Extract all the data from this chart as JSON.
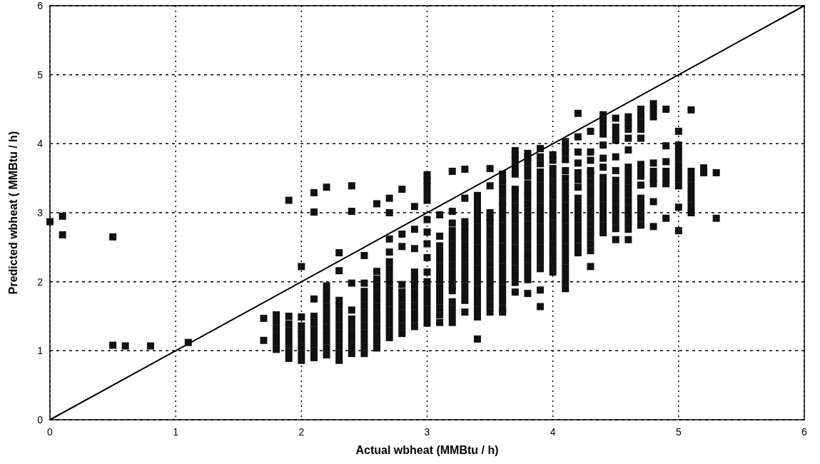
{
  "chart_data": {
    "type": "scatter",
    "xlabel": "Actual wbheat (MMBtu / h)",
    "ylabel": "Predicted wbheat ( MMBtu / h)",
    "xlim": [
      0,
      6
    ],
    "ylim": [
      0,
      6
    ],
    "xticks": [
      0,
      1,
      2,
      3,
      4,
      5,
      6
    ],
    "yticks": [
      0,
      1,
      2,
      3,
      4,
      5,
      6
    ],
    "grid": true,
    "marker": "square",
    "series": [
      {
        "type": "line",
        "color": "#000000",
        "marker": "none",
        "x": [
          0,
          6
        ],
        "values": [
          0,
          6
        ]
      },
      {
        "color": "#111111",
        "x": [
          0,
          0.1,
          0.1,
          0.5,
          0.5,
          0.6,
          0.8,
          1.1,
          1.7,
          1.7,
          1.8,
          1.8,
          1.8,
          1.8,
          1.8,
          1.8,
          1.9,
          1.9,
          1.9,
          1.9,
          1.9,
          1.9,
          1.9,
          1.9,
          2.0,
          2.0,
          2.0,
          2.0,
          2.0,
          2.0,
          2.0,
          2.0,
          2.1,
          2.1,
          2.1,
          2.1,
          2.1,
          2.1,
          2.1,
          2.1,
          2.1,
          2.1,
          2.2,
          2.2,
          2.2,
          2.2,
          2.2,
          2.2,
          2.2,
          2.2,
          2.2,
          2.2,
          2.2,
          2.2,
          2.3,
          2.3,
          2.3,
          2.3,
          2.3,
          2.3,
          2.3,
          2.3,
          2.3,
          2.3,
          2.3,
          2.3,
          2.4,
          2.4,
          2.4,
          2.4,
          2.4,
          2.4,
          2.4,
          2.4,
          2.4,
          2.4,
          2.5,
          2.5,
          2.5,
          2.5,
          2.5,
          2.5,
          2.5,
          2.5,
          2.5,
          2.5,
          2.5,
          2.5,
          2.6,
          2.6,
          2.6,
          2.6,
          2.6,
          2.6,
          2.6,
          2.6,
          2.6,
          2.6,
          2.6,
          2.6,
          2.6,
          2.7,
          2.7,
          2.7,
          2.7,
          2.7,
          2.7,
          2.7,
          2.7,
          2.7,
          2.7,
          2.7,
          2.7,
          2.7,
          2.7,
          2.7,
          2.7,
          2.8,
          2.8,
          2.8,
          2.8,
          2.8,
          2.8,
          2.8,
          2.8,
          2.8,
          2.8,
          2.8,
          2.9,
          2.9,
          2.9,
          2.9,
          2.9,
          2.9,
          2.9,
          2.9,
          2.9,
          2.9,
          2.9,
          2.9,
          3.0,
          3.0,
          3.0,
          3.0,
          3.0,
          3.0,
          3.0,
          3.0,
          3.0,
          3.0,
          3.0,
          3.0,
          3.0,
          3.0,
          3.0,
          3.0,
          3.0,
          3.1,
          3.1,
          3.1,
          3.1,
          3.1,
          3.1,
          3.1,
          3.1,
          3.1,
          3.1,
          3.1,
          3.1,
          3.1,
          3.1,
          3.2,
          3.2,
          3.2,
          3.2,
          3.2,
          3.2,
          3.2,
          3.2,
          3.2,
          3.2,
          3.2,
          3.2,
          3.2,
          3.2,
          3.2,
          3.2,
          3.2,
          3.3,
          3.3,
          3.3,
          3.3,
          3.3,
          3.3,
          3.3,
          3.3,
          3.3,
          3.3,
          3.3,
          3.3,
          3.3,
          3.3,
          3.3,
          3.3,
          3.4,
          3.4,
          3.4,
          3.4,
          3.4,
          3.4,
          3.4,
          3.4,
          3.4,
          3.4,
          3.4,
          3.4,
          3.4,
          3.4,
          3.4,
          3.4,
          3.4,
          3.4,
          3.4,
          3.4,
          3.5,
          3.5,
          3.5,
          3.5,
          3.5,
          3.5,
          3.5,
          3.5,
          3.5,
          3.5,
          3.5,
          3.5,
          3.5,
          3.5,
          3.5,
          3.5,
          3.5,
          3.5,
          3.6,
          3.6,
          3.6,
          3.6,
          3.6,
          3.6,
          3.6,
          3.6,
          3.6,
          3.6,
          3.6,
          3.6,
          3.6,
          3.6,
          3.6,
          3.6,
          3.6,
          3.6,
          3.6,
          3.6,
          3.6,
          3.6,
          3.7,
          3.7,
          3.7,
          3.7,
          3.7,
          3.7,
          3.7,
          3.7,
          3.7,
          3.7,
          3.7,
          3.7,
          3.7,
          3.7,
          3.7,
          3.7,
          3.7,
          3.7,
          3.7,
          3.7,
          3.7,
          3.8,
          3.8,
          3.8,
          3.8,
          3.8,
          3.8,
          3.8,
          3.8,
          3.8,
          3.8,
          3.8,
          3.8,
          3.8,
          3.8,
          3.8,
          3.8,
          3.8,
          3.8,
          3.8,
          3.8,
          3.8,
          3.9,
          3.9,
          3.9,
          3.9,
          3.9,
          3.9,
          3.9,
          3.9,
          3.9,
          3.9,
          3.9,
          3.9,
          3.9,
          3.9,
          3.9,
          3.9,
          3.9,
          3.9,
          3.9,
          3.9,
          3.9,
          4.0,
          4.0,
          4.0,
          4.0,
          4.0,
          4.0,
          4.0,
          4.0,
          4.0,
          4.0,
          4.0,
          4.0,
          4.0,
          4.0,
          4.0,
          4.0,
          4.0,
          4.0,
          4.1,
          4.1,
          4.1,
          4.1,
          4.1,
          4.1,
          4.1,
          4.1,
          4.1,
          4.1,
          4.1,
          4.1,
          4.1,
          4.1,
          4.1,
          4.1,
          4.1,
          4.1,
          4.1,
          4.1,
          4.1,
          4.1,
          4.2,
          4.2,
          4.2,
          4.2,
          4.2,
          4.2,
          4.2,
          4.2,
          4.2,
          4.2,
          4.2,
          4.2,
          4.2,
          4.2,
          4.2,
          4.2,
          4.3,
          4.3,
          4.3,
          4.3,
          4.3,
          4.3,
          4.3,
          4.3,
          4.3,
          4.3,
          4.3,
          4.3,
          4.3,
          4.3,
          4.3,
          4.3,
          4.3,
          4.4,
          4.4,
          4.4,
          4.4,
          4.4,
          4.4,
          4.4,
          4.4,
          4.4,
          4.4,
          4.4,
          4.4,
          4.4,
          4.4,
          4.4,
          4.4,
          4.5,
          4.5,
          4.5,
          4.5,
          4.5,
          4.5,
          4.5,
          4.5,
          4.5,
          4.5,
          4.5,
          4.5,
          4.5,
          4.5,
          4.5,
          4.6,
          4.6,
          4.6,
          4.6,
          4.6,
          4.6,
          4.6,
          4.6,
          4.6,
          4.6,
          4.6,
          4.6,
          4.6,
          4.6,
          4.6,
          4.6,
          4.7,
          4.7,
          4.7,
          4.7,
          4.7,
          4.7,
          4.7,
          4.7,
          4.7,
          4.7,
          4.7,
          4.7,
          4.7,
          4.7,
          4.8,
          4.8,
          4.8,
          4.8,
          4.8,
          4.8,
          4.8,
          4.8,
          4.8,
          4.9,
          4.9,
          4.9,
          4.9,
          4.9,
          4.9,
          4.9,
          5.0,
          5.0,
          5.0,
          5.0,
          5.0,
          5.0,
          5.0,
          5.0,
          5.0,
          5.0,
          5.1,
          5.1,
          5.1,
          5.1,
          5.1,
          5.1,
          5.1,
          5.1,
          5.2,
          5.2,
          5.3,
          5.3
        ],
        "values": [
          2.87,
          2.95,
          2.68,
          2.65,
          1.08,
          1.07,
          1.07,
          1.12,
          1.15,
          1.47,
          1.02,
          1.12,
          1.22,
          1.32,
          1.42,
          1.52,
          0.89,
          0.99,
          1.09,
          1.19,
          1.29,
          1.39,
          1.5,
          3.18,
          0.86,
          0.96,
          1.06,
          1.16,
          1.26,
          1.36,
          1.49,
          2.22,
          0.9,
          1.0,
          1.1,
          1.2,
          1.3,
          1.4,
          1.5,
          1.75,
          3.01,
          3.29,
          0.94,
          1.04,
          1.14,
          1.24,
          1.34,
          1.44,
          1.54,
          1.64,
          1.74,
          1.84,
          1.94,
          3.37,
          0.86,
          0.96,
          1.06,
          1.16,
          1.26,
          1.36,
          1.46,
          1.56,
          1.66,
          1.73,
          2.16,
          2.42,
          0.96,
          1.06,
          1.16,
          1.26,
          1.36,
          1.46,
          1.59,
          1.98,
          3.02,
          3.39,
          0.96,
          1.06,
          1.16,
          1.26,
          1.36,
          1.46,
          1.56,
          1.66,
          1.76,
          1.86,
          1.98,
          2.38,
          1.04,
          1.14,
          1.24,
          1.34,
          1.44,
          1.54,
          1.64,
          1.74,
          1.84,
          1.94,
          2.04,
          2.15,
          3.13,
          1.19,
          1.29,
          1.39,
          1.49,
          1.59,
          1.69,
          1.79,
          1.89,
          1.99,
          2.09,
          2.19,
          2.29,
          2.43,
          2.62,
          3.0,
          3.21,
          1.25,
          1.35,
          1.45,
          1.55,
          1.65,
          1.75,
          1.85,
          1.96,
          2.51,
          2.69,
          3.34,
          1.35,
          1.45,
          1.55,
          1.65,
          1.75,
          1.85,
          1.95,
          2.05,
          2.14,
          2.48,
          2.76,
          3.09,
          1.4,
          1.5,
          1.6,
          1.7,
          1.8,
          1.9,
          2.0,
          2.14,
          2.35,
          2.55,
          2.72,
          2.9,
          3.18,
          3.28,
          3.38,
          3.46,
          3.55,
          1.41,
          1.52,
          1.62,
          1.72,
          1.82,
          1.92,
          2.02,
          2.12,
          2.22,
          2.32,
          2.42,
          2.52,
          2.66,
          2.97,
          1.41,
          1.51,
          1.61,
          1.71,
          1.87,
          1.94,
          2.04,
          2.14,
          2.24,
          2.34,
          2.44,
          2.54,
          2.64,
          2.74,
          2.85,
          3.02,
          3.6,
          1.56,
          1.73,
          1.83,
          1.93,
          2.03,
          2.13,
          2.23,
          2.33,
          2.43,
          2.53,
          2.63,
          2.72,
          2.8,
          2.87,
          3.21,
          3.63,
          1.17,
          1.49,
          1.59,
          1.69,
          1.79,
          1.89,
          1.99,
          2.09,
          2.19,
          2.29,
          2.39,
          2.49,
          2.59,
          2.69,
          2.79,
          2.89,
          2.99,
          3.08,
          3.16,
          3.25,
          1.56,
          1.66,
          1.76,
          1.86,
          1.96,
          2.06,
          2.16,
          2.26,
          2.36,
          2.46,
          2.56,
          2.66,
          2.76,
          2.86,
          2.93,
          3.0,
          3.39,
          3.64,
          1.56,
          1.61,
          1.71,
          1.81,
          1.91,
          2.01,
          2.11,
          2.21,
          2.31,
          2.41,
          2.51,
          2.61,
          2.71,
          2.81,
          2.91,
          3.01,
          3.11,
          3.16,
          3.26,
          3.36,
          3.46,
          3.56,
          1.85,
          1.99,
          2.09,
          2.19,
          2.29,
          2.39,
          2.49,
          2.59,
          2.69,
          2.79,
          2.89,
          2.99,
          3.09,
          3.19,
          3.29,
          3.34,
          3.56,
          3.66,
          3.76,
          3.84,
          3.9,
          1.83,
          2.03,
          2.13,
          2.23,
          2.33,
          2.43,
          2.53,
          2.63,
          2.73,
          2.83,
          2.93,
          3.03,
          3.13,
          3.23,
          3.32,
          3.42,
          3.53,
          3.63,
          3.73,
          3.8,
          3.86,
          1.64,
          1.88,
          2.19,
          2.29,
          2.39,
          2.49,
          2.59,
          2.66,
          2.69,
          2.79,
          2.89,
          2.99,
          3.09,
          3.19,
          3.29,
          3.39,
          3.49,
          3.59,
          3.71,
          3.81,
          3.93,
          2.14,
          2.24,
          2.34,
          2.44,
          2.54,
          2.64,
          2.74,
          2.84,
          2.94,
          3.04,
          3.14,
          3.24,
          3.34,
          3.44,
          3.54,
          3.64,
          3.76,
          3.84,
          1.9,
          2.0,
          2.1,
          2.2,
          2.3,
          2.4,
          2.5,
          2.6,
          2.7,
          2.8,
          2.9,
          3.0,
          3.1,
          3.2,
          3.3,
          3.4,
          3.5,
          3.61,
          3.77,
          3.87,
          3.95,
          4.03,
          2.42,
          2.51,
          2.61,
          2.71,
          2.81,
          2.91,
          3.01,
          3.11,
          3.21,
          3.37,
          3.48,
          3.58,
          3.72,
          3.88,
          4.1,
          4.44,
          2.22,
          2.45,
          2.55,
          2.65,
          2.75,
          2.85,
          2.95,
          3.05,
          3.15,
          3.25,
          3.35,
          3.45,
          3.55,
          3.61,
          3.76,
          3.88,
          4.18,
          2.71,
          2.81,
          2.91,
          3.01,
          3.11,
          3.21,
          3.31,
          3.41,
          3.51,
          3.66,
          3.79,
          3.98,
          4.14,
          4.24,
          4.34,
          4.42,
          2.61,
          2.77,
          2.87,
          2.97,
          3.07,
          3.17,
          3.27,
          3.37,
          3.47,
          3.61,
          3.81,
          4.05,
          4.14,
          4.24,
          4.37,
          2.61,
          2.76,
          2.86,
          2.96,
          3.06,
          3.16,
          3.26,
          3.36,
          3.46,
          3.56,
          3.66,
          3.91,
          4.08,
          4.21,
          4.3,
          4.39,
          2.82,
          2.92,
          3.02,
          3.12,
          3.21,
          3.4,
          3.53,
          3.62,
          3.7,
          4.08,
          4.21,
          4.31,
          4.41,
          4.5,
          2.8,
          3.16,
          3.42,
          3.5,
          3.6,
          3.72,
          4.39,
          4.49,
          4.58,
          2.92,
          3.42,
          3.51,
          3.6,
          3.74,
          3.97,
          4.5,
          2.74,
          3.08,
          3.39,
          3.49,
          3.59,
          3.69,
          3.79,
          3.89,
          3.98,
          4.18,
          3.0,
          3.1,
          3.2,
          3.3,
          3.4,
          3.5,
          3.6,
          4.49,
          3.58,
          3.65,
          2.92,
          3.58
        ]
      }
    ]
  }
}
